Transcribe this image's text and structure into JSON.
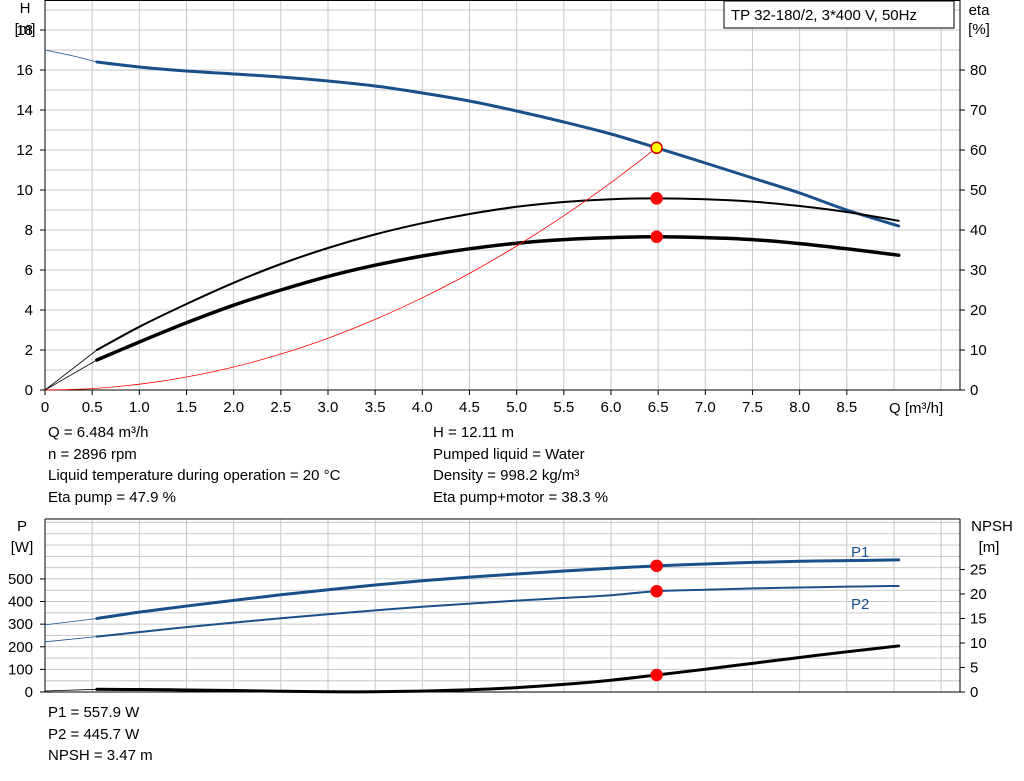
{
  "pump_title": "TP 32-180/2, 3*400 V, 50Hz",
  "main": {
    "left_axis_label": "H",
    "left_axis_unit": "[m]",
    "right_axis_label": "eta",
    "right_axis_unit": "[%]",
    "x_axis_label": "Q [m³/h]"
  },
  "lower": {
    "left_axis_label": "P",
    "left_axis_unit": "[W]",
    "right_axis_label": "NPSH",
    "right_axis_unit": "[m]"
  },
  "operating_point": {
    "flow": "Q = 6.484 m³/h",
    "speed": "n = 2896 rpm",
    "liquid_temperature": "Liquid temperature during operation = 20 °C",
    "eta_pump": "Eta pump = 47.9 %",
    "head": "H = 12.11 m",
    "pumped_liquid": "Pumped liquid = Water",
    "density": "Density = 998.2 kg/m³",
    "eta_pump_motor": "Eta pump+motor = 38.3 %",
    "p1": "P1 = 557.9 W",
    "p2": "P2 = 445.7 W",
    "npsh": "NPSH = 3.47 m"
  },
  "colors": {
    "curve_blue": "#1a4f8a",
    "system_curve": "#ff0000",
    "marker_red": "#ff0000",
    "marker_yellow": "#ffff00",
    "grid": "#c8c8c8"
  },
  "chart_data": [
    {
      "type": "line",
      "x_ticks": [
        "0",
        "0.5",
        "1.0",
        "1.5",
        "2.0",
        "2.5",
        "3.0",
        "3.5",
        "4.0",
        "4.5",
        "5.0",
        "5.5",
        "6.0",
        "6.5",
        "7.0",
        "7.5",
        "8.0",
        "8.5"
      ],
      "y_ticks_left": [
        "0",
        "2",
        "4",
        "6",
        "8",
        "10",
        "12",
        "14",
        "16",
        "18"
      ],
      "y_ticks_right": [
        "0",
        "10",
        "20",
        "30",
        "40",
        "50",
        "60",
        "70",
        "80"
      ],
      "xlim": [
        0,
        9.7
      ],
      "ylim_left": [
        0,
        19.5
      ],
      "ylim_right": [
        0,
        97.5
      ],
      "grid": true,
      "series": [
        {
          "role": "head",
          "axis": "left",
          "color": "#1a4f8a",
          "width": 3,
          "x": [
            0.55,
            1.0,
            1.5,
            2.0,
            2.5,
            3.0,
            3.5,
            4.0,
            4.5,
            5.0,
            5.5,
            6.0,
            6.484,
            7.0,
            7.5,
            8.0,
            8.5,
            9.05
          ],
          "y": [
            16.4,
            16.15,
            15.95,
            15.8,
            15.65,
            15.45,
            15.2,
            14.85,
            14.45,
            13.95,
            13.4,
            12.8,
            12.11,
            11.35,
            10.6,
            9.85,
            9.0,
            8.2
          ]
        },
        {
          "role": "head-extension",
          "axis": "left",
          "color": "#1a4f8a",
          "width": 0.8,
          "x": [
            0,
            0.3,
            0.55
          ],
          "y": [
            17.0,
            16.7,
            16.4
          ]
        },
        {
          "role": "eta-pump",
          "axis": "right",
          "color": "#000000",
          "width": 2,
          "x": [
            0.55,
            1.0,
            1.5,
            2.0,
            2.5,
            3.0,
            3.5,
            4.0,
            4.5,
            5.0,
            5.5,
            6.0,
            6.484,
            7.0,
            7.5,
            8.0,
            8.5,
            9.05
          ],
          "y": [
            10.0,
            15.8,
            21.5,
            26.8,
            31.5,
            35.5,
            38.9,
            41.7,
            44.0,
            45.8,
            47.0,
            47.7,
            47.9,
            47.7,
            47.1,
            46.0,
            44.5,
            42.3
          ]
        },
        {
          "role": "eta-pump-motor",
          "axis": "right",
          "color": "#000000",
          "width": 3.5,
          "x": [
            0.55,
            1.0,
            1.5,
            2.0,
            2.5,
            3.0,
            3.5,
            4.0,
            4.5,
            5.0,
            5.5,
            6.0,
            6.484,
            7.0,
            7.5,
            8.0,
            8.5,
            9.05
          ],
          "y": [
            7.5,
            12.0,
            16.8,
            21.2,
            25.0,
            28.4,
            31.2,
            33.5,
            35.3,
            36.7,
            37.6,
            38.1,
            38.3,
            38.1,
            37.6,
            36.6,
            35.3,
            33.7
          ]
        },
        {
          "role": "eta-extension",
          "axis": "right",
          "color": "#000000",
          "width": 0.8,
          "x": [
            0,
            0.55
          ],
          "y": [
            0,
            10.0
          ]
        },
        {
          "role": "eta-motor-extension",
          "axis": "right",
          "color": "#000000",
          "width": 0.8,
          "x": [
            0,
            0.55
          ],
          "y": [
            0,
            7.5
          ]
        },
        {
          "role": "system-curve",
          "axis": "left",
          "color": "#ff0000",
          "width": 0.8,
          "x": [
            0,
            0.5,
            1.0,
            1.5,
            2.0,
            2.5,
            3.0,
            3.5,
            4.0,
            4.5,
            5.0,
            5.5,
            6.0,
            6.484
          ],
          "y": [
            0,
            0.07,
            0.29,
            0.65,
            1.15,
            1.8,
            2.59,
            3.53,
            4.61,
            5.83,
            7.2,
            8.71,
            10.37,
            12.11
          ]
        }
      ],
      "markers": [
        {
          "x": 6.484,
          "y": 12.11,
          "axis": "left",
          "fill": "#ffff00"
        },
        {
          "x": 6.484,
          "y": 47.9,
          "axis": "right",
          "fill": "#ff0000"
        },
        {
          "x": 6.484,
          "y": 38.3,
          "axis": "right",
          "fill": "#ff0000"
        }
      ]
    },
    {
      "type": "line",
      "xlim": [
        0,
        9.7
      ],
      "y_ticks_left": [
        "0",
        "100",
        "200",
        "300",
        "400",
        "500"
      ],
      "y_ticks_right": [
        "0",
        "5",
        "10",
        "15",
        "20",
        "25"
      ],
      "ylim_left": [
        0,
        765
      ],
      "ylim_right": [
        0,
        35.3
      ],
      "grid": true,
      "series": [
        {
          "name": "P1",
          "axis": "left",
          "color": "#1a4f8a",
          "width": 3,
          "x": [
            0.55,
            1.0,
            1.5,
            2.0,
            2.5,
            3.0,
            3.5,
            4.0,
            4.5,
            5.0,
            5.5,
            6.0,
            6.484,
            7.0,
            7.5,
            8.0,
            8.5,
            9.05
          ],
          "y": [
            325,
            353,
            380,
            405,
            430,
            452,
            473,
            492,
            508,
            522,
            535,
            547,
            557.9,
            566,
            573,
            578,
            581,
            584
          ]
        },
        {
          "role": "p1-extension",
          "axis": "left",
          "color": "#1a4f8a",
          "width": 0.8,
          "x": [
            0,
            0.55
          ],
          "y": [
            297,
            325
          ]
        },
        {
          "name": "P2",
          "axis": "left",
          "color": "#1a4f8a",
          "width": 2,
          "x": [
            0.55,
            1.0,
            1.5,
            2.0,
            2.5,
            3.0,
            3.5,
            4.0,
            4.5,
            5.0,
            5.5,
            6.0,
            6.484,
            7.0,
            7.5,
            8.0,
            8.5,
            9.05
          ],
          "y": [
            245,
            265,
            287,
            307,
            326,
            344,
            361,
            377,
            391,
            404,
            416,
            428,
            445.7,
            452,
            458,
            462,
            466,
            469
          ]
        },
        {
          "role": "p2-extension",
          "axis": "left",
          "color": "#1a4f8a",
          "width": 0.8,
          "x": [
            0,
            0.55
          ],
          "y": [
            222,
            245
          ]
        },
        {
          "role": "npsh",
          "axis": "right",
          "color": "#000000",
          "width": 3,
          "x": [
            0.55,
            1.0,
            1.5,
            2.0,
            2.5,
            3.0,
            3.5,
            4.0,
            4.5,
            5.0,
            5.5,
            6.0,
            6.484,
            7.0,
            7.5,
            8.0,
            8.5,
            9.05
          ],
          "y": [
            0.55,
            0.5,
            0.42,
            0.3,
            0.15,
            0.05,
            0.05,
            0.18,
            0.45,
            0.9,
            1.55,
            2.4,
            3.47,
            4.65,
            5.85,
            7.05,
            8.2,
            9.4
          ]
        },
        {
          "role": "npsh-extension",
          "axis": "right",
          "color": "#000000",
          "width": 0.8,
          "x": [
            0,
            0.55
          ],
          "y": [
            0.2,
            0.55
          ]
        }
      ],
      "markers": [
        {
          "x": 6.484,
          "y": 557.9,
          "axis": "left",
          "fill": "#ff0000"
        },
        {
          "x": 6.484,
          "y": 445.7,
          "axis": "left",
          "fill": "#ff0000"
        },
        {
          "x": 6.484,
          "y": 3.47,
          "axis": "right",
          "fill": "#ff0000"
        }
      ]
    }
  ]
}
